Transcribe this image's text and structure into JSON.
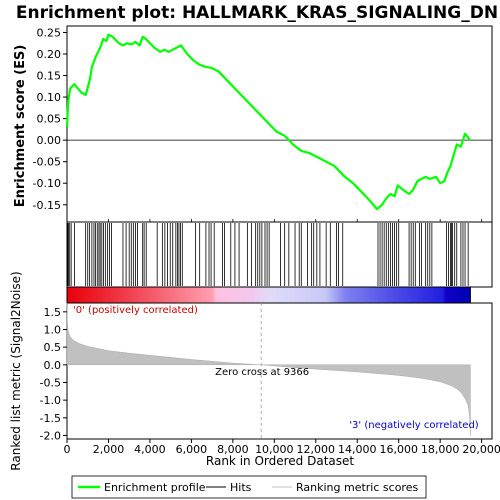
{
  "chart_data": {
    "type": "line",
    "title": "Enrichment plot: HALLMARK_KRAS_SIGNALING_DN",
    "es_panel": {
      "ylabel": "Enrichment score (ES)",
      "ylim": [
        -0.19,
        0.265
      ],
      "y_ticks": [
        0.25,
        0.2,
        0.15,
        0.1,
        0.05,
        0.0,
        -0.05,
        -0.1,
        -0.15
      ],
      "y_tick_labels": [
        "0.25",
        "0.20",
        "0.15",
        "0.10",
        "0.05",
        "0.00",
        "-0.05",
        "-0.10",
        "-0.15"
      ],
      "series": [
        {
          "name": "Enrichment profile",
          "color": "#00ff00",
          "x": [
            0,
            60,
            150,
            350,
            700,
            900,
            1100,
            1200,
            1400,
            1600,
            1750,
            1900,
            2000,
            2200,
            2500,
            2700,
            2900,
            3100,
            3300,
            3500,
            3650,
            3800,
            4200,
            4500,
            4700,
            4900,
            5100,
            5300,
            5500,
            5800,
            6100,
            6400,
            6700,
            6950,
            7300,
            7700,
            8100,
            8500,
            8900,
            9300,
            9700,
            10100,
            10500,
            10900,
            11300,
            11700,
            12100,
            12500,
            12900,
            13100,
            13400,
            13800,
            14200,
            14600,
            14950,
            15200,
            15400,
            15600,
            15800,
            15950,
            16200,
            16500,
            16700,
            16900,
            17100,
            17300,
            17500,
            17800,
            18000,
            18200,
            18350,
            18500,
            18650,
            18800,
            19000,
            19200,
            19450
          ],
          "y": [
            0.03,
            0.09,
            0.12,
            0.13,
            0.11,
            0.105,
            0.14,
            0.17,
            0.195,
            0.215,
            0.235,
            0.23,
            0.245,
            0.24,
            0.225,
            0.22,
            0.225,
            0.222,
            0.228,
            0.22,
            0.24,
            0.235,
            0.215,
            0.205,
            0.21,
            0.205,
            0.21,
            0.215,
            0.22,
            0.2,
            0.185,
            0.175,
            0.17,
            0.168,
            0.16,
            0.14,
            0.12,
            0.1,
            0.08,
            0.06,
            0.04,
            0.02,
            0.01,
            -0.01,
            -0.025,
            -0.03,
            -0.04,
            -0.05,
            -0.06,
            -0.07,
            -0.085,
            -0.1,
            -0.12,
            -0.14,
            -0.16,
            -0.15,
            -0.135,
            -0.125,
            -0.13,
            -0.105,
            -0.115,
            -0.125,
            -0.115,
            -0.095,
            -0.09,
            -0.085,
            -0.09,
            -0.085,
            -0.1,
            -0.095,
            -0.075,
            -0.06,
            -0.035,
            -0.01,
            -0.015,
            0.015,
            0.0
          ]
        }
      ]
    },
    "hits_panel": {
      "hit_positions": [
        30,
        70,
        130,
        200,
        360,
        900,
        1000,
        1080,
        1200,
        1300,
        1380,
        1460,
        1540,
        1600,
        1680,
        1760,
        1850,
        1960,
        2050,
        2150,
        2700,
        2850,
        3000,
        3100,
        3200,
        3300,
        3400,
        3650,
        3720,
        3820,
        4350,
        4600,
        4720,
        4850,
        4980,
        5100,
        5250,
        5330,
        5400,
        5480,
        5560,
        6200,
        6400,
        6700,
        6850,
        6950,
        7100,
        7500,
        7600,
        7900,
        8100,
        8300,
        8700,
        8900,
        9100,
        9200,
        9300,
        9400,
        9550,
        9650,
        9750,
        10300,
        10500,
        10700,
        11000,
        11200,
        11300,
        11600,
        11800,
        11900,
        12050,
        12200,
        12500,
        12700,
        13000,
        13100,
        13300,
        15000,
        15100,
        15200,
        15300,
        15400,
        15500,
        15600,
        15700,
        15800,
        15900,
        16000,
        16500,
        16600,
        16700,
        16800,
        17000,
        17100,
        17300,
        17400,
        17500,
        17600,
        18300,
        18400,
        18500,
        18550,
        18600,
        18700,
        18800,
        19000,
        19100,
        19200,
        19350
      ]
    },
    "metric_panel": {
      "ylabel": "Ranked list metric (Signal2Noise)",
      "ylim": [
        -2.1,
        1.75
      ],
      "y_ticks": [
        1.5,
        1.0,
        0.5,
        0.0,
        -0.5,
        -1.0,
        -1.5,
        -2.0
      ],
      "y_tick_labels": [
        "1.5",
        "1.0",
        "0.5",
        "0.0",
        "-0.5",
        "-1.0",
        "-1.5",
        "-2.0"
      ],
      "x": [
        0,
        20,
        60,
        150,
        300,
        600,
        1000,
        2000,
        3000,
        4000,
        5000,
        6000,
        7000,
        8000,
        9000,
        9366,
        10000,
        11000,
        12000,
        13000,
        14000,
        15000,
        16000,
        17000,
        17500,
        18000,
        18500,
        18800,
        19000,
        19200,
        19350,
        19420,
        19460
      ],
      "values": [
        1.75,
        1.2,
        0.95,
        0.8,
        0.7,
        0.6,
        0.52,
        0.4,
        0.33,
        0.27,
        0.21,
        0.15,
        0.1,
        0.05,
        0.01,
        0.0,
        -0.03,
        -0.08,
        -0.12,
        -0.16,
        -0.2,
        -0.25,
        -0.3,
        -0.37,
        -0.42,
        -0.48,
        -0.58,
        -0.68,
        -0.78,
        -0.95,
        -1.15,
        -1.5,
        -2.0
      ],
      "zero_cross_label": "Zero cross at 9366",
      "zero_cross_x": 9366,
      "pos_label": "'0' (positively correlated)",
      "neg_label": "'3' (negatively correlated)",
      "pos_color": "#cc0000",
      "neg_color": "#0000cc"
    },
    "xlabel": "Rank in Ordered Dataset",
    "xlim": [
      0,
      20500
    ],
    "x_ticks": [
      0,
      2000,
      4000,
      6000,
      8000,
      10000,
      12000,
      14000,
      16000,
      18000,
      20000
    ],
    "x_tick_labels": [
      "0",
      "2,000",
      "4,000",
      "6,000",
      "8,000",
      "10,000",
      "12,000",
      "14,000",
      "16,000",
      "18,000",
      "20,000"
    ],
    "n_genes": 19460,
    "gradient_stops": [
      {
        "pos": 0.0,
        "color": "#e8000a"
      },
      {
        "pos": 0.14,
        "color": "#f03a47"
      },
      {
        "pos": 0.36,
        "color": "#ff9fb0"
      },
      {
        "pos": 0.37,
        "color": "#ffc0e0"
      },
      {
        "pos": 0.46,
        "color": "#f2c8f0"
      },
      {
        "pos": 0.5,
        "color": "#e0dcf8"
      },
      {
        "pos": 0.64,
        "color": "#c8c8f8"
      },
      {
        "pos": 0.69,
        "color": "#8080f0"
      },
      {
        "pos": 0.8,
        "color": "#5050e8"
      },
      {
        "pos": 0.93,
        "color": "#2020e0"
      },
      {
        "pos": 0.94,
        "color": "#1000c8"
      },
      {
        "pos": 1.0,
        "color": "#0000b0"
      }
    ],
    "legend": {
      "placement": "bottom",
      "items": [
        {
          "label": "Enrichment profile",
          "color": "#00ff00"
        },
        {
          "label": "Hits",
          "color": "#000000"
        },
        {
          "label": "Ranking metric scores",
          "color": "#c0c0c0"
        }
      ]
    }
  }
}
